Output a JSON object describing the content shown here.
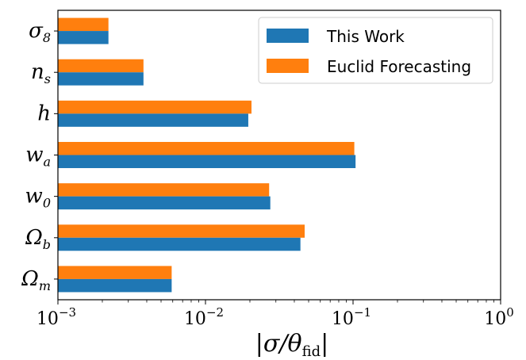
{
  "chart_data": {
    "type": "bar",
    "orientation": "horizontal",
    "x_scale": "log",
    "xlim": [
      0.001,
      1
    ],
    "xlabel": "|σ/θ_fid|",
    "xlabel_main": "|σ/θ",
    "xlabel_sub": "fid",
    "xlabel_end": "|",
    "x_ticks": [
      {
        "value": 0.001,
        "base": "10",
        "exp": "−3"
      },
      {
        "value": 0.01,
        "base": "10",
        "exp": "−2"
      },
      {
        "value": 0.1,
        "base": "10",
        "exp": "−1"
      },
      {
        "value": 1,
        "base": "10",
        "exp": "0"
      }
    ],
    "categories": [
      {
        "main": "σ",
        "sub": "8"
      },
      {
        "main": "n",
        "sub": "s"
      },
      {
        "main": "h",
        "sub": ""
      },
      {
        "main": "w",
        "sub": "a"
      },
      {
        "main": "w",
        "sub": "0"
      },
      {
        "main": "Ω",
        "sub": "b"
      },
      {
        "main": "Ω",
        "sub": "m"
      }
    ],
    "series": [
      {
        "name": "This Work",
        "color": "#1f77b4",
        "values": [
          0.0022,
          0.0038,
          0.0195,
          0.104,
          0.0275,
          0.044,
          0.0059
        ]
      },
      {
        "name": "Euclid Forecasting",
        "color": "#ff7f0e",
        "values": [
          0.0022,
          0.0038,
          0.0205,
          0.102,
          0.027,
          0.047,
          0.0059
        ]
      }
    ],
    "legend_position": "top-right",
    "grid": false
  }
}
